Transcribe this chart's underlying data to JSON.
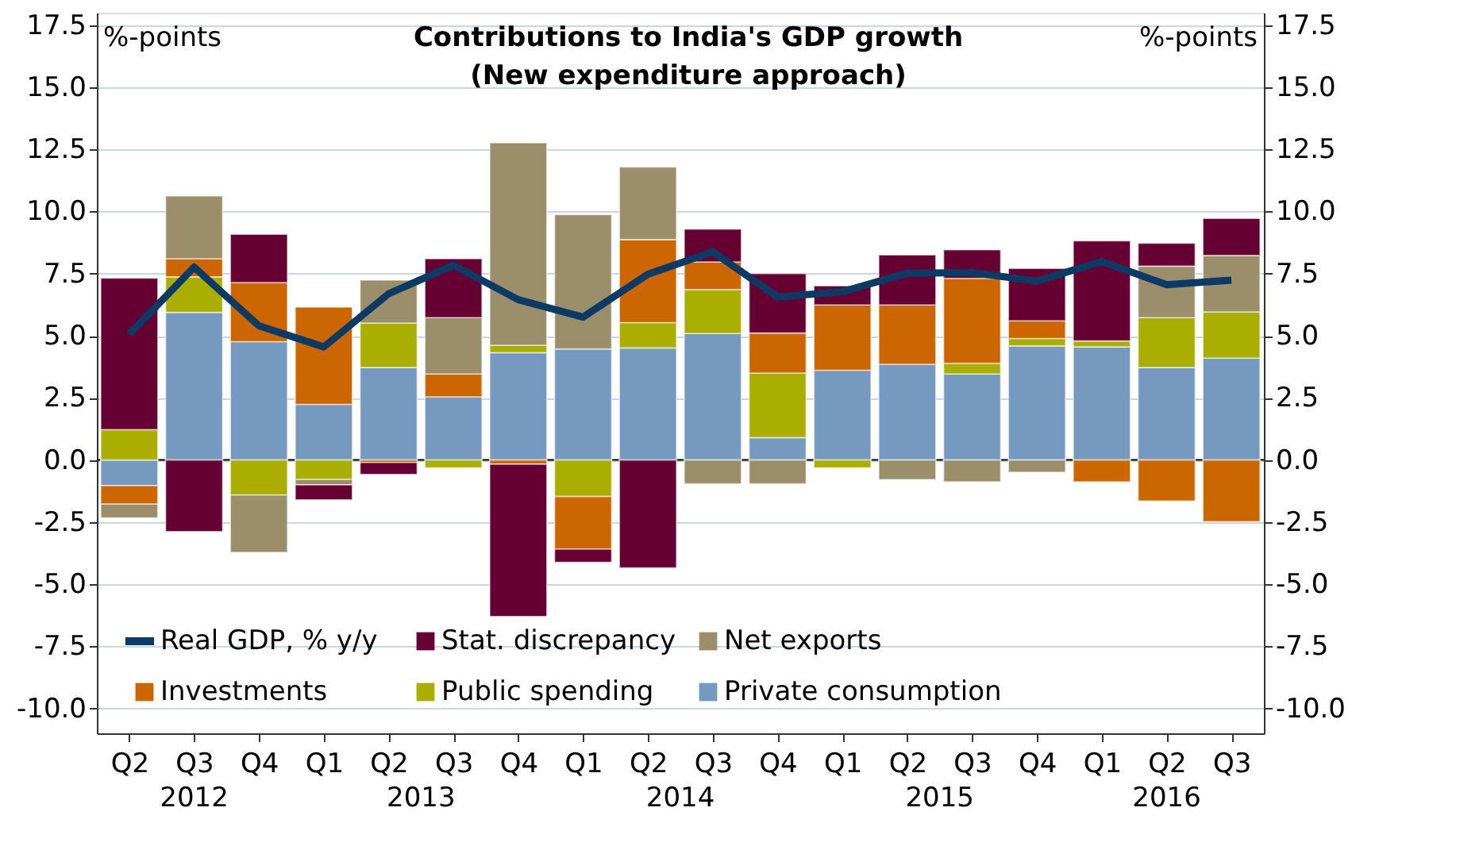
{
  "chart_data": {
    "type": "bar",
    "title": "Contributions to India's GDP growth",
    "subtitle": "(New expenditure approach)",
    "ylabel": "%-points",
    "y2label": "%-points",
    "categories": [
      "Q2",
      "Q3",
      "Q4",
      "Q1",
      "Q2",
      "Q3",
      "Q4",
      "Q1",
      "Q2",
      "Q3",
      "Q4",
      "Q1",
      "Q2",
      "Q3",
      "Q4",
      "Q1",
      "Q2",
      "Q3"
    ],
    "annotations": [
      "2012",
      "2013",
      "2014",
      "2015",
      "2016"
    ],
    "stacked": true,
    "series": [
      {
        "name": "Private consumption",
        "color": "#7699bf",
        "values": [
          -1.03,
          5.94,
          4.76,
          2.24,
          3.72,
          2.54,
          4.32,
          4.47,
          4.51,
          5.09,
          0.9,
          3.61,
          3.85,
          3.46,
          4.59,
          4.55,
          3.72,
          4.1
        ]
      },
      {
        "name": "Public spending",
        "color": "#a9ae00",
        "values": [
          1.22,
          1.43,
          -1.41,
          -0.79,
          1.79,
          -0.32,
          0.3,
          -1.47,
          1.02,
          1.77,
          2.6,
          -0.32,
          null,
          0.43,
          0.3,
          0.24,
          2.01,
          1.86
        ]
      },
      {
        "name": "Investments",
        "color": "#cc6600",
        "values": [
          -0.75,
          0.73,
          2.38,
          3.91,
          -0.1,
          0.92,
          -0.17,
          -2.12,
          3.34,
          1.11,
          1.61,
          2.63,
          2.39,
          3.42,
          0.71,
          -0.88,
          -1.65,
          -2.48
        ]
      },
      {
        "name": "Net exports",
        "color": "#9a8f6a",
        "values": [
          -0.55,
          2.52,
          -2.31,
          -0.21,
          1.73,
          2.27,
          8.14,
          5.4,
          2.92,
          -0.96,
          -0.96,
          null,
          -0.79,
          -0.88,
          -0.49,
          null,
          2.07,
          2.27
        ]
      },
      {
        "name": "Stat. discrepancy",
        "color": "#660033",
        "values": [
          6.1,
          -2.88,
          1.94,
          -0.6,
          -0.48,
          2.37,
          -6.13,
          -0.53,
          -4.34,
          1.32,
          2.39,
          0.77,
          2.01,
          1.15,
          2.11,
          4.03,
          0.92,
          1.49
        ]
      },
      {
        "name": "Real GDP, % y/y",
        "type": "line",
        "color": "#0b3a64",
        "values": [
          5.06,
          7.76,
          5.4,
          4.55,
          6.69,
          7.84,
          6.45,
          5.75,
          7.48,
          8.38,
          6.56,
          6.77,
          7.52,
          7.54,
          7.2,
          7.99,
          7.05,
          7.24
        ]
      }
    ],
    "ylim": [
      -11,
      18
    ],
    "yticks": [
      {
        "value": -10,
        "label": "-10.0"
      },
      {
        "value": -7.5,
        "label": "-7.5"
      },
      {
        "value": -5,
        "label": "-5.0"
      },
      {
        "value": -2.5,
        "label": "-2.5"
      },
      {
        "value": 0,
        "label": "0.0"
      },
      {
        "value": 2.5,
        "label": "2.5"
      },
      {
        "value": 5,
        "label": "5.0"
      },
      {
        "value": 7.5,
        "label": "7.5"
      },
      {
        "value": 10,
        "label": "10.0"
      },
      {
        "value": 12.5,
        "label": "12.5"
      },
      {
        "value": 15,
        "label": "15.0"
      },
      {
        "value": 17.5,
        "label": "17.5"
      }
    ],
    "y2lim": [
      -11,
      18
    ],
    "y2ticks": [
      {
        "value": -10,
        "label": "-10.0"
      },
      {
        "value": -7.5,
        "label": "-7.5"
      },
      {
        "value": -5,
        "label": "-5.0"
      },
      {
        "value": -2.5,
        "label": "-2.5"
      },
      {
        "value": 0,
        "label": "0.0"
      },
      {
        "value": 2.5,
        "label": "2.5"
      },
      {
        "value": 5,
        "label": "5.0"
      },
      {
        "value": 7.5,
        "label": "7.5"
      },
      {
        "value": 10,
        "label": "10.0"
      },
      {
        "value": 12.5,
        "label": "12.5"
      },
      {
        "value": 15,
        "label": "15.0"
      },
      {
        "value": 17.5,
        "label": "17.5"
      }
    ],
    "ref_lines": [
      {
        "axis": "y",
        "value": 0,
        "color": "#000000"
      }
    ],
    "grid": "y",
    "legend": "bottom left"
  }
}
